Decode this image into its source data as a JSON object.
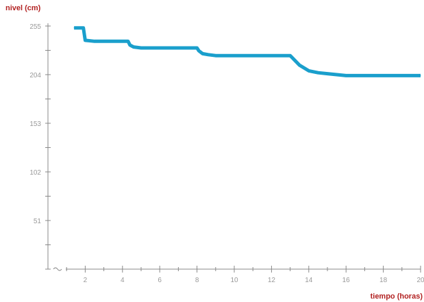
{
  "chart_data": {
    "type": "line",
    "title": "",
    "ylabel": "nivel (cm)",
    "xlabel": "tiempo (horas)",
    "xlim": [
      0,
      20
    ],
    "ylim": [
      0,
      255
    ],
    "x_ticks": [
      "2",
      "4",
      "6",
      "8",
      "10",
      "12",
      "14",
      "16",
      "18",
      "20"
    ],
    "y_ticks": [
      "255",
      "204",
      "153",
      "102",
      "51"
    ],
    "grid": false,
    "legend": "none",
    "colors": {
      "line": "#1a9fcc",
      "axis": "#888888",
      "label": "#b22222",
      "tick_text": "#999999"
    },
    "series": [
      {
        "x": [
          1.4,
          1.9,
          2.0,
          2.5,
          3.0,
          3.5,
          4.0,
          4.3,
          4.4,
          4.6,
          5.0,
          5.5,
          6.0,
          6.5,
          7.0,
          7.5,
          8.0,
          8.1,
          8.3,
          8.6,
          9.0,
          9.5,
          10.0,
          10.5,
          11.0,
          11.5,
          12.0,
          12.5,
          13.0,
          13.1,
          13.5,
          14.0,
          14.5,
          15.0,
          15.5,
          16.0,
          17.0,
          18.0,
          19.0,
          20.0
        ],
        "values": [
          253,
          253,
          240,
          239,
          239,
          239,
          239,
          239,
          235,
          233,
          232,
          232,
          232,
          232,
          232,
          232,
          232,
          229,
          226,
          225,
          224,
          224,
          224,
          224,
          224,
          224,
          224,
          224,
          224,
          222,
          214,
          208,
          206,
          205,
          204,
          203,
          203,
          203,
          203,
          203
        ]
      }
    ]
  }
}
